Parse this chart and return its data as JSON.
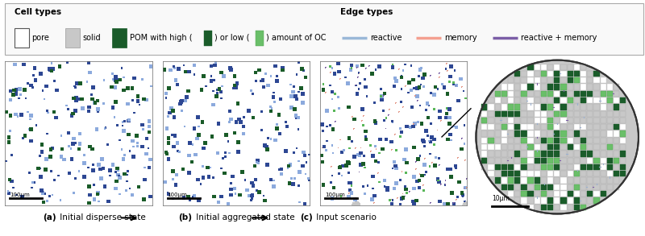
{
  "legend": {
    "cell_types_title": "Cell types",
    "edge_types_title": "Edge types",
    "pore_label": "pore",
    "solid_label": "solid",
    "pom_label_pre": "POM with high (",
    "pom_label_mid": ") or low (",
    "pom_label_post": ") amount of OC",
    "pom_high_color": "#1a5c2a",
    "pom_low_color": "#6abf69",
    "reactive_label": "reactive",
    "memory_label": "memory",
    "reactive_memory_label": "reactive + memory",
    "reactive_color": "#9ab8d8",
    "memory_color": "#f4a090",
    "reactive_memory_color": "#7b5ea7",
    "solid_color": "#c8c8c8",
    "pore_color": "#ffffff",
    "pore_edge_color": "#666666"
  },
  "subfig_labels": [
    "(a) Initial disperse state",
    "(b) Initial aggregated state",
    "(c) Input scenario"
  ],
  "scale_bar_label": "100µm",
  "zoom_scale_bar_label": "10µm",
  "figure_bg": "#ffffff",
  "panel_bg": "#ffffff"
}
